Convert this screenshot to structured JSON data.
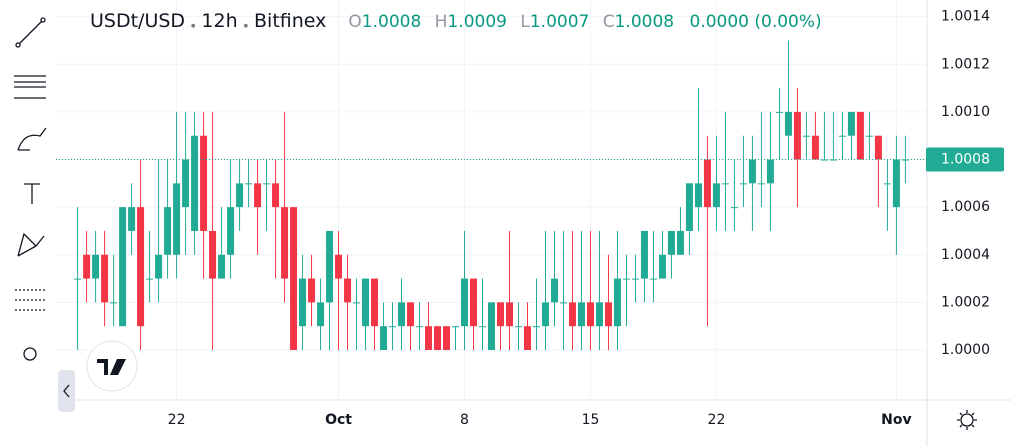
{
  "chart_data": {
    "type": "candlestick",
    "symbol": "USDt/USD",
    "interval": "12h",
    "exchange": "Bitfinex",
    "legend": {
      "open_label": "O",
      "open": 1.0008,
      "high_label": "H",
      "high": 1.0009,
      "low_label": "L",
      "low": 1.0007,
      "close_label": "C",
      "close": 1.0008,
      "change": "0.0000 (0.00%)"
    },
    "last_price": 1.0008,
    "up_color": "#22ab94",
    "down_color": "#f23645",
    "open": [
      1.0003,
      1.0004,
      1.0003,
      1.0004,
      1.0002,
      1.0001,
      1.0005,
      1.0006,
      1.0003,
      1.0003,
      1.0004,
      1.0004,
      1.0006,
      1.0005,
      1.0009,
      1.0005,
      1.0003,
      1.0004,
      1.0006,
      1.0007,
      1.0007,
      1.0007,
      1.0007,
      1.0006,
      1.0006,
      1.0001,
      1.0003,
      1.0001,
      1.0002,
      1.0004,
      1.0003,
      1.0002,
      1.0001,
      1.0003,
      1.0,
      1.0001,
      1.0001,
      1.0002,
      1.0001,
      1.0001,
      1.0001,
      1.0001,
      1.0001,
      1.0001,
      1.0003,
      1.0001,
      1.0,
      1.0002,
      1.0002,
      1.0001,
      1.0001,
      1.0001,
      1.0001,
      1.0002,
      1.0002,
      1.0002,
      1.0001,
      1.0002,
      1.0001,
      1.0002,
      1.0001,
      1.0003,
      1.0003,
      1.0003,
      1.0003,
      1.0003,
      1.0004,
      1.0004,
      1.0005,
      1.0006,
      1.0008,
      1.0006,
      1.0007,
      1.0006,
      1.0007,
      1.0007,
      1.0007,
      1.0007,
      1.001,
      1.0009,
      1.001,
      1.0009,
      1.0009,
      1.0008,
      1.0008,
      1.0009,
      1.0009,
      1.001,
      1.0009,
      1.0009,
      1.0007,
      1.0006,
      1.0008
    ],
    "high": [
      1.0006,
      1.0005,
      1.0005,
      1.0005,
      1.0004,
      1.0006,
      1.0007,
      1.0008,
      1.0005,
      1.0008,
      1.0008,
      1.001,
      1.001,
      1.001,
      1.001,
      1.001,
      1.0006,
      1.0008,
      1.0008,
      1.0008,
      1.0008,
      1.0008,
      1.0008,
      1.001,
      1.0006,
      1.0004,
      1.0004,
      1.0003,
      1.0005,
      1.0005,
      1.0004,
      1.0003,
      1.0003,
      1.0003,
      1.0002,
      1.0002,
      1.0003,
      1.0002,
      1.0002,
      1.0002,
      1.0001,
      1.0001,
      1.0001,
      1.0005,
      1.0003,
      1.0003,
      1.0002,
      1.0002,
      1.0005,
      1.0002,
      1.0002,
      1.0003,
      1.0005,
      1.0005,
      1.0005,
      1.0005,
      1.0005,
      1.0005,
      1.0005,
      1.0004,
      1.0005,
      1.0004,
      1.0004,
      1.0005,
      1.0005,
      1.0005,
      1.0005,
      1.0006,
      1.0007,
      1.0011,
      1.0009,
      1.0009,
      1.001,
      1.0008,
      1.0009,
      1.0009,
      1.001,
      1.001,
      1.0011,
      1.0013,
      1.0011,
      1.001,
      1.001,
      1.001,
      1.001,
      1.001,
      1.001,
      1.001,
      1.001,
      1.0009,
      1.0008,
      1.0009,
      1.0009
    ],
    "low": [
      1.0,
      1.0002,
      1.0002,
      1.0001,
      1.0001,
      1.0001,
      1.0004,
      1.0,
      1.0002,
      1.0002,
      1.0003,
      1.0003,
      1.0004,
      1.0004,
      1.0003,
      1.0,
      1.0003,
      1.0003,
      1.0005,
      1.0006,
      1.0004,
      1.0005,
      1.0003,
      1.0002,
      1.0,
      1.0,
      1.0001,
      1.0,
      1.0,
      1.0,
      1.0,
      1.0,
      1.0,
      1.0,
      1.0,
      1.0,
      1.0,
      1.0,
      1.0,
      1.0,
      1.0,
      1.0,
      1.0,
      1.0,
      1.0,
      1.0,
      1.0,
      1.0,
      1.0,
      1.0,
      1.0,
      1.0,
      1.0,
      1.0001,
      1.0,
      1.0,
      1.0,
      1.0,
      1.0,
      1.0,
      1.0,
      1.0001,
      1.0002,
      1.0002,
      1.0002,
      1.0003,
      1.0003,
      1.0004,
      1.0004,
      1.0005,
      1.0001,
      1.0005,
      1.0005,
      1.0005,
      1.0006,
      1.0005,
      1.0006,
      1.0005,
      1.0008,
      1.0008,
      1.0006,
      1.0008,
      1.0008,
      1.0008,
      1.0008,
      1.0008,
      1.0008,
      1.0008,
      1.0008,
      1.0006,
      1.0005,
      1.0004,
      1.0007
    ],
    "close": [
      1.0003,
      1.0003,
      1.0004,
      1.0002,
      1.0002,
      1.0006,
      1.0006,
      1.0001,
      1.0003,
      1.0004,
      1.0006,
      1.0007,
      1.0008,
      1.0009,
      1.0005,
      1.0003,
      1.0004,
      1.0006,
      1.0007,
      1.0007,
      1.0006,
      1.0007,
      1.0006,
      1.0003,
      1.0,
      1.0003,
      1.0002,
      1.0002,
      1.0005,
      1.0003,
      1.0002,
      1.0002,
      1.0003,
      1.0001,
      1.0001,
      1.0001,
      1.0002,
      1.0001,
      1.0001,
      1.0,
      1.0,
      1.0,
      1.0001,
      1.0003,
      1.0001,
      1.0001,
      1.0002,
      1.0001,
      1.0001,
      1.0001,
      1.0,
      1.0001,
      1.0002,
      1.0003,
      1.0002,
      1.0001,
      1.0002,
      1.0001,
      1.0002,
      1.0001,
      1.0003,
      1.0003,
      1.0003,
      1.0005,
      1.0003,
      1.0004,
      1.0005,
      1.0005,
      1.0007,
      1.0007,
      1.0006,
      1.0007,
      1.0007,
      1.0006,
      1.0007,
      1.0008,
      1.0007,
      1.0008,
      1.001,
      1.001,
      1.0008,
      1.0009,
      1.0008,
      1.0008,
      1.0008,
      1.0009,
      1.001,
      1.0008,
      1.0009,
      1.0008,
      1.0007,
      1.0008,
      1.0008
    ],
    "xlim": [
      -2.4,
      94.4
    ],
    "xticks": [
      {
        "value": 11,
        "label": "22"
      },
      {
        "value": 29,
        "label": "Oct"
      },
      {
        "value": 43,
        "label": "8"
      },
      {
        "value": 57,
        "label": "15"
      },
      {
        "value": 71,
        "label": "22"
      },
      {
        "value": 91,
        "label": "Nov"
      }
    ],
    "ylim": [
      0.99979,
      1.00147
    ],
    "yticks": [
      {
        "value": 1.0,
        "label": "1.0000"
      },
      1.0002,
      1.0004,
      1.0006,
      1.0008,
      {
        "value": 1.001,
        "label": "1.0010"
      },
      1.0012,
      1.0014
    ],
    "grid": true
  }
}
